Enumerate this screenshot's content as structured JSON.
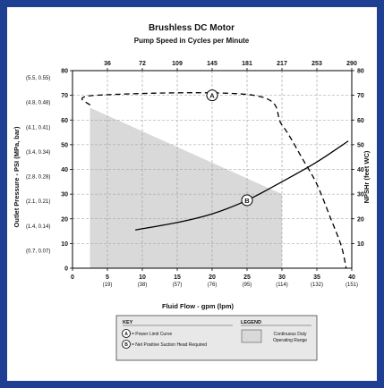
{
  "chart_data": {
    "type": "line",
    "title": "Brushless DC Motor",
    "subtitle": "Pump Speed in Cycles per Minute",
    "xlabel": "Fluid Flow - gpm (lpm)",
    "ylabel_left": "Outlet Pressure - PSI (MPa, bar)",
    "ylabel_right": "NPSHr (feet WC)",
    "xlim": [
      0,
      40
    ],
    "ylim": [
      0,
      80
    ],
    "grid": true,
    "x_ticks": [
      {
        "value": 0,
        "label": "0",
        "sub": ""
      },
      {
        "value": 5,
        "label": "5",
        "sub": "(19)"
      },
      {
        "value": 10,
        "label": "10",
        "sub": "(38)"
      },
      {
        "value": 15,
        "label": "15",
        "sub": "(57)"
      },
      {
        "value": 20,
        "label": "20",
        "sub": "(76)"
      },
      {
        "value": 25,
        "label": "25",
        "sub": "(95)"
      },
      {
        "value": 30,
        "label": "30",
        "sub": "(114)"
      },
      {
        "value": 35,
        "label": "35",
        "sub": "(132)"
      },
      {
        "value": 40,
        "label": "40",
        "sub": "(151)"
      }
    ],
    "top_ticks": [
      {
        "value": 5,
        "label": "36"
      },
      {
        "value": 10,
        "label": "72"
      },
      {
        "value": 15,
        "label": "109"
      },
      {
        "value": 20,
        "label": "145"
      },
      {
        "value": 25,
        "label": "181"
      },
      {
        "value": 30,
        "label": "217"
      },
      {
        "value": 35,
        "label": "253"
      },
      {
        "value": 40,
        "label": "290"
      }
    ],
    "y_ticks_left": [
      {
        "value": 0,
        "label": "0",
        "sub": ""
      },
      {
        "value": 10,
        "label": "10",
        "sub": "(0.7, 0.07)"
      },
      {
        "value": 20,
        "label": "20",
        "sub": "(1.4, 0.14)"
      },
      {
        "value": 30,
        "label": "30",
        "sub": "(2.1, 0.21)"
      },
      {
        "value": 40,
        "label": "40",
        "sub": "(2.8, 0.28)"
      },
      {
        "value": 50,
        "label": "50",
        "sub": "(3.4, 0.34)"
      },
      {
        "value": 60,
        "label": "60",
        "sub": "(4.1, 0.41)"
      },
      {
        "value": 70,
        "label": "70",
        "sub": "(4.8, 0.48)"
      },
      {
        "value": 80,
        "label": "80",
        "sub": "(5.5, 0.55)"
      }
    ],
    "y_ticks_right": [
      {
        "value": 10,
        "label": "10"
      },
      {
        "value": 20,
        "label": "20"
      },
      {
        "value": 30,
        "label": "30"
      },
      {
        "value": 40,
        "label": "40"
      },
      {
        "value": 50,
        "label": "50"
      },
      {
        "value": 60,
        "label": "60"
      },
      {
        "value": 70,
        "label": "70"
      },
      {
        "value": 80,
        "label": "80"
      }
    ],
    "series": [
      {
        "marker": "A",
        "style": "dashed",
        "points": [
          [
            2.5,
            66
          ],
          [
            3.3,
            70
          ],
          [
            26,
            70
          ],
          [
            30,
            58
          ],
          [
            33,
            44
          ],
          [
            35,
            34
          ],
          [
            37,
            20
          ],
          [
            38.5,
            9
          ],
          [
            39.2,
            0
          ]
        ]
      },
      {
        "marker": "B",
        "style": "solid",
        "points": [
          [
            9,
            15.5
          ],
          [
            15,
            18.5
          ],
          [
            20,
            22
          ],
          [
            25,
            27.5
          ],
          [
            30,
            35
          ],
          [
            35,
            43
          ],
          [
            39.5,
            51.5
          ]
        ]
      }
    ],
    "shaded_region": [
      [
        2.5,
        65
      ],
      [
        30,
        30
      ],
      [
        30,
        0
      ],
      [
        2.5,
        0
      ]
    ],
    "key": {
      "heading": "KEY",
      "items": [
        {
          "marker": "A",
          "text": "= Power Limit Curve"
        },
        {
          "marker": "B",
          "text": "= Net Positive Suction Head Required"
        }
      ]
    },
    "legend": {
      "heading": "LEGEND",
      "line1": "Continuous Duty",
      "line2": "Operating Range"
    },
    "colors": {
      "border": "#1f3f93",
      "shade": "#d9d9d9",
      "curve": "#000000",
      "grid": "#9a9a9a"
    }
  }
}
